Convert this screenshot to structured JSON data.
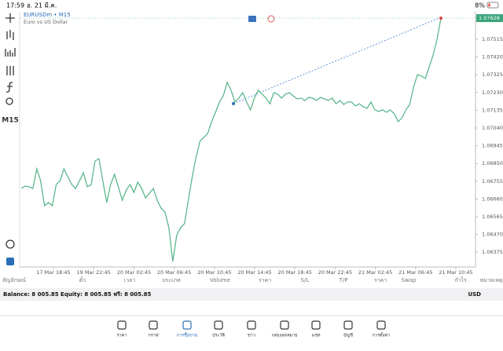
{
  "status_bar": {
    "time": "17:59",
    "date": "อ. 21 มี.ค.",
    "battery": "8%"
  },
  "chart": {
    "type": "line",
    "symbol": "EURUSDm • M15",
    "description": "Euro vs US Dollar",
    "timeframe": "M15",
    "color": "#5cb78e",
    "ylim": [
      1.06296,
      1.07662
    ],
    "yticks": [
      1.07515,
      {
        "value": 1.0742,
        "label": "1.07420"
      },
      1.07325,
      {
        "value": 1.0723,
        "label": "1.07230"
      },
      1.07135,
      {
        "value": 1.0704,
        "label": "1.07040"
      },
      1.06945,
      {
        "value": 1.0685,
        "label": "1.06850"
      },
      1.06755,
      {
        "value": 1.0666,
        "label": "1.06660"
      },
      1.06565,
      {
        "value": 1.0647,
        "label": "1.06470"
      },
      1.06375
    ],
    "current_price": 1.07628,
    "x_labels": [
      "17 Mar 18:45",
      "19 Mar 22:45",
      "20 Mar 02:45",
      "20 Mar 06:45",
      "20 Mar 10:45",
      "20 Mar 14:45",
      "20 Mar 18:45",
      "20 Mar 22:45",
      "21 Mar 02:45",
      "21 Mar 06:45",
      "21 Mar 10:45"
    ],
    "values": [
      1.06716,
      1.06729,
      1.06725,
      1.06716,
      1.06821,
      1.06758,
      1.06624,
      1.06641,
      1.06624,
      1.06737,
      1.06758,
      1.06821,
      1.06779,
      1.06737,
      1.06716,
      1.06758,
      1.068,
      1.06725,
      1.06737,
      1.06863,
      1.06876,
      1.06758,
      1.06641,
      1.06737,
      1.06792,
      1.06725,
      1.06653,
      1.06708,
      1.06737,
      1.06695,
      1.0675,
      1.06716,
      1.06666,
      1.06691,
      1.06716,
      1.06653,
      1.06611,
      1.0659,
      1.06506,
      1.06325,
      1.06464,
      1.06506,
      1.06527,
      1.06653,
      1.06779,
      1.06884,
      1.06969,
      1.0699,
      1.07011,
      1.07074,
      1.07124,
      1.07179,
      1.07212,
      1.07284,
      1.07242,
      1.07179,
      1.072,
      1.07229,
      1.07179,
      1.07137,
      1.072,
      1.07242,
      1.07221,
      1.072,
      1.0717,
      1.07229,
      1.07221,
      1.072,
      1.07221,
      1.07229,
      1.07212,
      1.07196,
      1.072,
      1.07187,
      1.07204,
      1.072,
      1.07187,
      1.07204,
      1.07196,
      1.07187,
      1.072,
      1.0717,
      1.07187,
      1.07166,
      1.07179,
      1.07179,
      1.07158,
      1.0717,
      1.07154,
      1.07145,
      1.07179,
      1.07137,
      1.07128,
      1.07137,
      1.07124,
      1.07137,
      1.07116,
      1.07074,
      1.07095,
      1.07137,
      1.07166,
      1.07263,
      1.07326,
      1.07317,
      1.07305,
      1.07368,
      1.07431,
      1.07515,
      1.07628
    ]
  },
  "table": {
    "headers": [
      "สัญลักษณ์",
      "ตั๋ว",
      "เวลา",
      "ประเภท",
      "Volume",
      "ราคา",
      "S/L",
      "T/P",
      "ราคา",
      "Swap",
      "กำไร",
      "หมายเหตุ"
    ]
  },
  "balance": {
    "text": "Balance: 8 005.85 Equity: 8 005.85 ฟรี: 8 005.85",
    "currency": "USD"
  },
  "tabs": [
    "ราคา",
    "กราฟ",
    "การซื้อขาย",
    "ประวัติ",
    "ข่าว",
    "กล่องจดหมาย",
    "แชท",
    "บัญชี",
    "การตั้งค่า"
  ]
}
